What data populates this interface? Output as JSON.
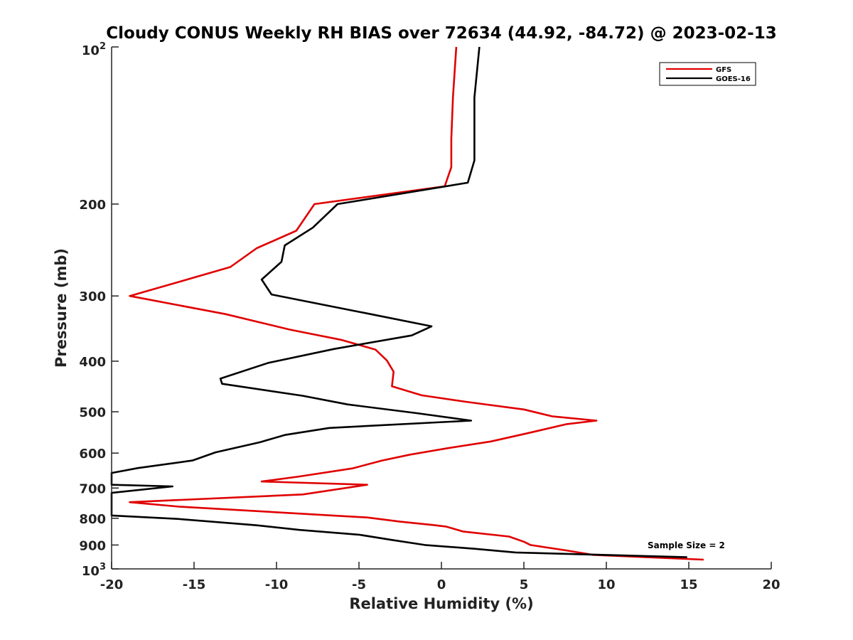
{
  "chart_data": {
    "type": "line",
    "title": "Cloudy CONUS Weekly RH BIAS over 72634 (44.92, -84.72) @ 2023-02-13",
    "xlabel": "Relative Humidity (%)",
    "ylabel": "Pressure (mb)",
    "xlim": [
      -20,
      20
    ],
    "ylim": [
      100,
      1000
    ],
    "y_scale": "log",
    "y_reversed": true,
    "x_ticks": [
      "-20",
      "-15",
      "-10",
      "-5",
      "0",
      "5",
      "10",
      "15",
      "20"
    ],
    "y_ticks": [
      "200",
      "300",
      "400",
      "500",
      "600",
      "700",
      "800",
      "900"
    ],
    "y_tick_top": {
      "base": "10",
      "exp": "2"
    },
    "y_tick_bottom": {
      "base": "10",
      "exp": "3"
    },
    "grid": false,
    "legend_position": "top-right",
    "annotation": "Sample Size = 2",
    "series": [
      {
        "name": "GFS",
        "color": "#e00000",
        "points": [
          [
            0.9,
            100
          ],
          [
            0.7,
            125
          ],
          [
            0.6,
            150
          ],
          [
            0.6,
            170
          ],
          [
            0.2,
            185
          ],
          [
            -7.7,
            200
          ],
          [
            -8.8,
            225
          ],
          [
            -11.2,
            243
          ],
          [
            -12.8,
            264
          ],
          [
            -16.1,
            283
          ],
          [
            -18.9,
            300
          ],
          [
            -13.1,
            325
          ],
          [
            -9.2,
            348
          ],
          [
            -6.1,
            364
          ],
          [
            -4.0,
            380
          ],
          [
            -3.3,
            399
          ],
          [
            -2.9,
            419
          ],
          [
            -3.0,
            447
          ],
          [
            -1.2,
            465
          ],
          [
            1.6,
            479
          ],
          [
            5.0,
            495
          ],
          [
            6.7,
            510
          ],
          [
            9.4,
            520
          ],
          [
            7.6,
            528
          ],
          [
            5.3,
            549
          ],
          [
            3.0,
            570
          ],
          [
            0.4,
            587
          ],
          [
            -1.9,
            604
          ],
          [
            -3.6,
            620
          ],
          [
            -5.4,
            642
          ],
          [
            -8.6,
            665
          ],
          [
            -10.9,
            680
          ],
          [
            -4.5,
            690
          ],
          [
            -8.4,
            720
          ],
          [
            -18.9,
            745
          ],
          [
            -15.9,
            760
          ],
          [
            -4.5,
            797
          ],
          [
            -2.5,
            812
          ],
          [
            -0.5,
            824
          ],
          [
            0.3,
            830
          ],
          [
            1.3,
            848
          ],
          [
            4.1,
            867
          ],
          [
            5.0,
            887
          ],
          [
            5.4,
            900
          ],
          [
            7.6,
            922
          ],
          [
            9.2,
            940
          ],
          [
            15.9,
            960
          ]
        ]
      },
      {
        "name": "GOES-16",
        "color": "#000000",
        "points": [
          [
            2.3,
            100
          ],
          [
            2.0,
            125
          ],
          [
            2.0,
            150
          ],
          [
            2.0,
            165
          ],
          [
            1.6,
            182
          ],
          [
            -6.3,
            200
          ],
          [
            -7.8,
            222
          ],
          [
            -9.5,
            240
          ],
          [
            -9.7,
            258
          ],
          [
            -10.9,
            279
          ],
          [
            -10.3,
            298
          ],
          [
            -4.3,
            325
          ],
          [
            -0.6,
            343
          ],
          [
            -1.8,
            357
          ],
          [
            -6.5,
            379
          ],
          [
            -10.5,
            403
          ],
          [
            -13.4,
            432
          ],
          [
            -13.3,
            442
          ],
          [
            -8.4,
            466
          ],
          [
            -5.7,
            484
          ],
          [
            -1.5,
            503
          ],
          [
            1.8,
            520
          ],
          [
            -6.8,
            537
          ],
          [
            -9.5,
            554
          ],
          [
            -11.0,
            572
          ],
          [
            -13.7,
            598
          ],
          [
            -15.1,
            620
          ],
          [
            -18.4,
            641
          ],
          [
            -20.0,
            655
          ],
          [
            -20.0,
            690
          ],
          [
            -16.3,
            695
          ],
          [
            -20.0,
            715
          ],
          [
            -20.0,
            790
          ],
          [
            -16.0,
            802
          ],
          [
            -11.2,
            825
          ],
          [
            -8.6,
            842
          ],
          [
            -5.0,
            860
          ],
          [
            -3.0,
            880
          ],
          [
            -1.0,
            900
          ],
          [
            2.0,
            915
          ],
          [
            4.5,
            930
          ],
          [
            14.9,
            950
          ]
        ]
      }
    ]
  }
}
